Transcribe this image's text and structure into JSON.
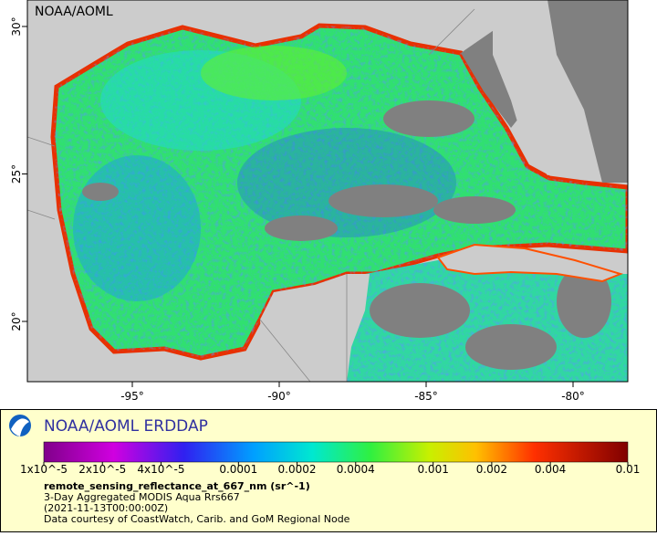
{
  "map": {
    "credit": "NOAA/AOML",
    "lon_ticks": [
      {
        "value": -95,
        "label": "-95°"
      },
      {
        "value": -90,
        "label": "-90°"
      },
      {
        "value": -85,
        "label": "-85°"
      },
      {
        "value": -80,
        "label": "-80°"
      }
    ],
    "lat_ticks": [
      {
        "value": 30,
        "label": "30°"
      },
      {
        "value": 25,
        "label": "25°"
      },
      {
        "value": 20,
        "label": "20°"
      }
    ]
  },
  "legend": {
    "title": "NOAA/AOML ERDDAP",
    "colorbar_ticks": [
      {
        "value": 1e-05,
        "label": "1x10^-5"
      },
      {
        "value": 2e-05,
        "label": "2x10^-5"
      },
      {
        "value": 4e-05,
        "label": "4x10^-5"
      },
      0.0001,
      0.0002,
      0.0004,
      0.001,
      0.002,
      0.004,
      0.01
    ],
    "variable": "remote_sensing_reflectance_at_667_nm (sr^-1)",
    "lines": [
      "3-Day Aggregated MODIS Aqua Rrs667",
      "(2021-11-13T00:00:00Z)",
      "Data courtesy of CoastWatch, Carib. and GoM Regional Node"
    ]
  }
}
